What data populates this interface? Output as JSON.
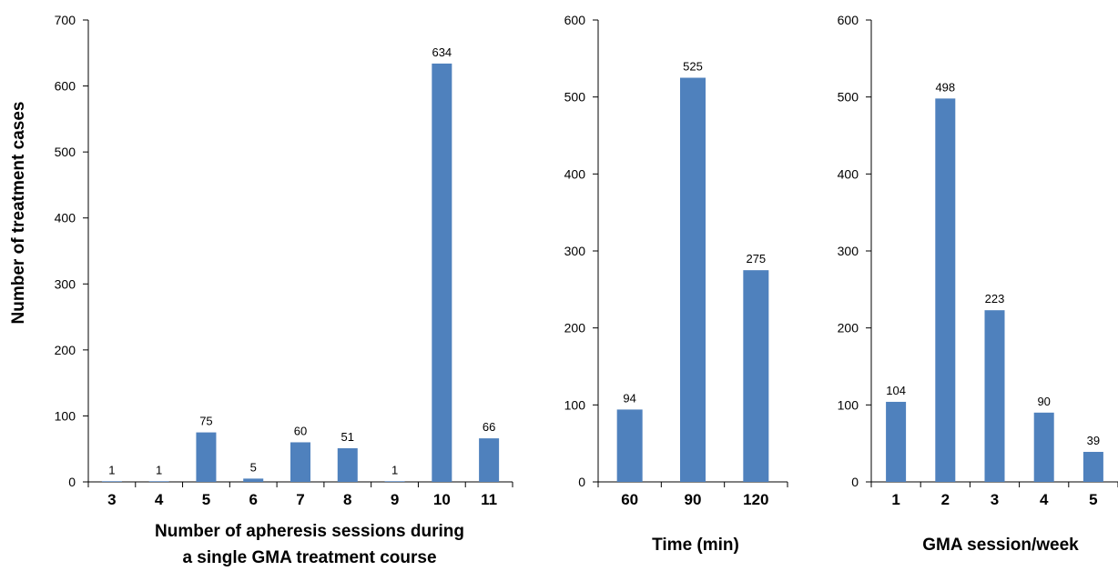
{
  "shared_ylabel": "Number of treatment cases",
  "chart_data": [
    {
      "type": "bar",
      "categories": [
        "3",
        "4",
        "5",
        "6",
        "7",
        "8",
        "9",
        "10",
        "11"
      ],
      "values": [
        1,
        1,
        75,
        5,
        60,
        51,
        1,
        634,
        66
      ],
      "xlabel_lines": [
        "Number of apheresis sessions during",
        "a single GMA treatment course"
      ],
      "ylabel": "Number of treatment cases",
      "ylim": [
        0,
        700
      ],
      "yticks": [
        0,
        100,
        200,
        300,
        400,
        500,
        600,
        700
      ],
      "bar_color": "#4f81bd",
      "grid": false
    },
    {
      "type": "bar",
      "categories": [
        "60",
        "90",
        "120"
      ],
      "values": [
        94,
        525,
        275
      ],
      "xlabel_lines": [
        "Time (min)"
      ],
      "ylim": [
        0,
        600
      ],
      "yticks": [
        0,
        100,
        200,
        300,
        400,
        500,
        600
      ],
      "bar_color": "#4f81bd",
      "grid": false
    },
    {
      "type": "bar",
      "categories": [
        "1",
        "2",
        "3",
        "4",
        "5"
      ],
      "values": [
        104,
        498,
        223,
        90,
        39
      ],
      "xlabel_lines": [
        "GMA session/week"
      ],
      "ylim": [
        0,
        600
      ],
      "yticks": [
        0,
        100,
        200,
        300,
        400,
        500,
        600
      ],
      "bar_color": "#4f81bd",
      "grid": false
    }
  ]
}
